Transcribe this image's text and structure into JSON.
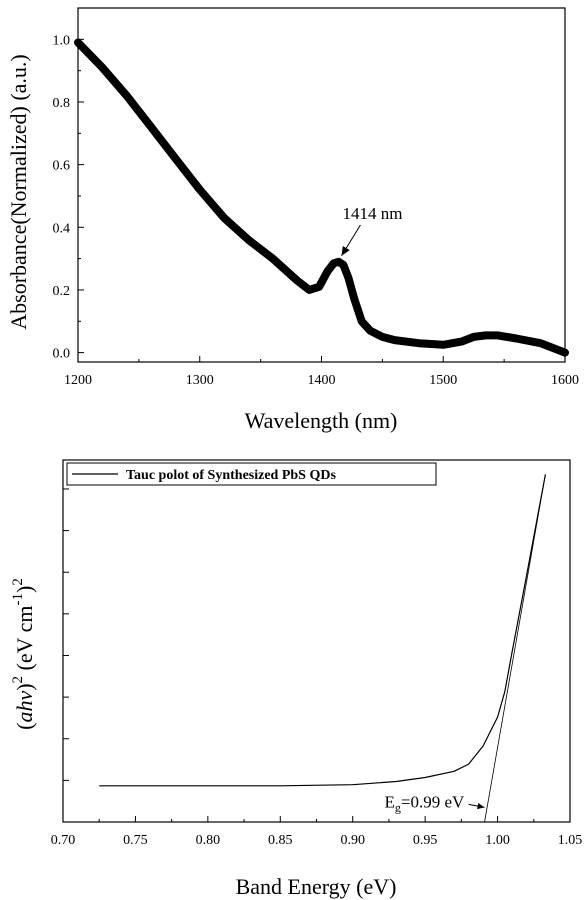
{
  "chart_data": [
    {
      "type": "line",
      "xlabel": "Wavelength (nm)",
      "ylabel": "Absorbance(Normalized) (a.u.)",
      "xlim": [
        1200,
        1600
      ],
      "ylim": [
        -0.03,
        1.1
      ],
      "xticks": [
        "1200",
        "1300",
        "1400",
        "1500",
        "1600"
      ],
      "yticks": [
        "0.0",
        "0.2",
        "0.4",
        "0.6",
        "0.8",
        "1.0"
      ],
      "series": [
        {
          "color": "#000000",
          "x": [
            1200,
            1220,
            1240,
            1260,
            1280,
            1300,
            1320,
            1340,
            1360,
            1380,
            1390,
            1398,
            1405,
            1410,
            1414,
            1418,
            1422,
            1427,
            1433,
            1440,
            1450,
            1460,
            1480,
            1500,
            1515,
            1525,
            1535,
            1545,
            1560,
            1580,
            1600
          ],
          "y": [
            0.99,
            0.91,
            0.82,
            0.72,
            0.62,
            0.52,
            0.43,
            0.36,
            0.3,
            0.23,
            0.2,
            0.21,
            0.26,
            0.285,
            0.29,
            0.28,
            0.24,
            0.17,
            0.1,
            0.07,
            0.05,
            0.04,
            0.03,
            0.025,
            0.035,
            0.05,
            0.055,
            0.055,
            0.045,
            0.03,
            0.0
          ]
        }
      ],
      "annotations": [
        {
          "text": "1414 nm",
          "x": 1414,
          "y": 0.29,
          "text_x": 1432,
          "text_y": 0.42
        }
      ],
      "grid": false
    },
    {
      "type": "line",
      "xlabel": "Band Energy (eV)",
      "ylabel_parts": {
        "open": "(",
        "a": "a",
        "h": "h",
        "v": "v",
        "close": ")",
        "sup2": "2",
        "unit_open": " (eV cm",
        "sup_neg1": "-1",
        "unit_close": ")",
        "sup2b": "2"
      },
      "xlim": [
        0.7,
        1.05
      ],
      "ylim": [
        0,
        100
      ],
      "xticks": [
        "0.70",
        "0.75",
        "0.80",
        "0.85",
        "0.90",
        "0.95",
        "1.00",
        "1.05"
      ],
      "legend": {
        "label": "Tauc polot of Synthesized PbS QDs",
        "position": "top-left"
      },
      "series": [
        {
          "name": "Tauc polot of Synthesized PbS QDs",
          "x": [
            0.725,
            0.8,
            0.85,
            0.9,
            0.93,
            0.95,
            0.97,
            0.98,
            0.99,
            1.0,
            1.005,
            1.01,
            1.02,
            1.033
          ],
          "y": [
            10,
            10,
            10,
            10.3,
            11.2,
            12.3,
            14,
            16,
            21,
            29,
            36,
            47,
            68,
            96
          ]
        }
      ],
      "tangent": {
        "x": [
          0.991,
          1.033
        ],
        "y": [
          0,
          96
        ]
      },
      "annotations": [
        {
          "text_parts": {
            "E": "E",
            "sub": "g",
            "rest": "=0.99 eV"
          },
          "x": 0.991,
          "y": 3.5
        }
      ],
      "grid": false
    }
  ]
}
